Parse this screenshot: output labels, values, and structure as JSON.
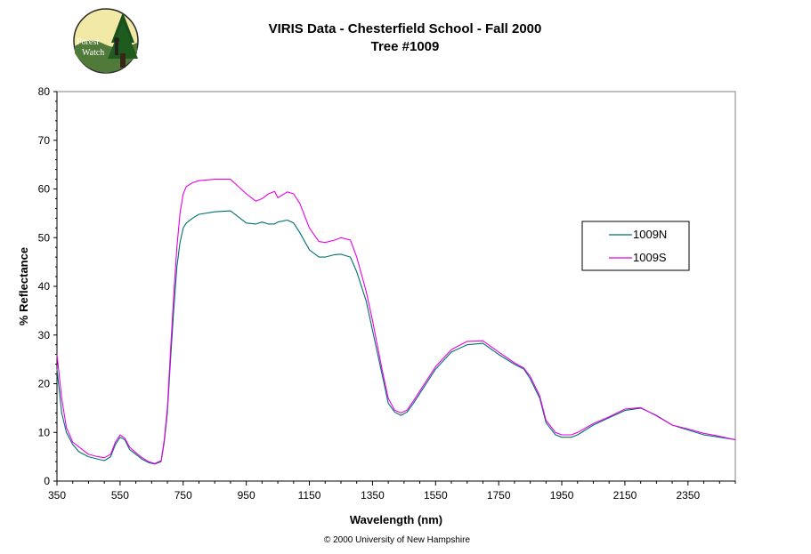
{
  "logo": {
    "line1": "Forest",
    "line2": "Watch"
  },
  "copyright": "© 2000 University of New Hampshire",
  "colors": {
    "series_1009N": "#007070",
    "series_1009S": "#e800e8"
  },
  "chart_data": {
    "type": "line",
    "title": "VIRIS Data - Chesterfield School - Fall 2000",
    "subtitle": "Tree #1009",
    "xlabel": "Wavelength (nm)",
    "ylabel": "% Reflectance",
    "xlim": [
      350,
      2500
    ],
    "ylim": [
      0,
      80
    ],
    "xticks": [
      350,
      550,
      750,
      950,
      1150,
      1350,
      1550,
      1750,
      1950,
      2150,
      2350
    ],
    "yticks": [
      0,
      10,
      20,
      30,
      40,
      50,
      60,
      70,
      80
    ],
    "grid": false,
    "legend_position": "right",
    "series": [
      {
        "name": "1009N",
        "color": "#007070",
        "x": [
          350,
          365,
          380,
          400,
          420,
          450,
          480,
          500,
          520,
          535,
          550,
          565,
          580,
          600,
          620,
          640,
          660,
          680,
          690,
          700,
          710,
          720,
          730,
          740,
          750,
          760,
          780,
          800,
          850,
          900,
          950,
          980,
          1000,
          1020,
          1040,
          1050,
          1080,
          1100,
          1120,
          1150,
          1180,
          1200,
          1230,
          1250,
          1280,
          1300,
          1330,
          1350,
          1380,
          1400,
          1420,
          1440,
          1460,
          1480,
          1500,
          1550,
          1600,
          1650,
          1700,
          1750,
          1800,
          1830,
          1850,
          1880,
          1900,
          1930,
          1950,
          1980,
          2000,
          2050,
          2100,
          2150,
          2200,
          2250,
          2300,
          2350,
          2400,
          2450,
          2500
        ],
        "y": [
          23,
          14,
          10,
          7.5,
          6,
          5,
          4.5,
          4.2,
          5,
          7.5,
          9,
          8.5,
          6.5,
          5.5,
          4.5,
          3.8,
          3.5,
          4,
          8,
          14,
          25,
          35,
          44,
          49,
          52,
          53,
          54,
          54.8,
          55.3,
          55.5,
          53,
          52.8,
          53.2,
          52.8,
          52.8,
          53.2,
          53.6,
          53,
          51,
          47.5,
          46,
          46,
          46.5,
          46.6,
          46,
          43,
          37,
          31,
          22,
          16,
          14.2,
          13.5,
          14.2,
          16,
          18,
          23,
          26.5,
          28,
          28.3,
          26,
          24,
          23,
          21,
          17,
          12,
          9.5,
          9,
          9,
          9.5,
          11.5,
          13,
          14.5,
          15,
          13.5,
          11.5,
          10.5,
          9.5,
          9,
          8.5
        ]
      },
      {
        "name": "1009S",
        "color": "#e800e8",
        "x": [
          350,
          365,
          380,
          400,
          420,
          450,
          480,
          500,
          520,
          535,
          550,
          565,
          580,
          600,
          620,
          640,
          660,
          680,
          690,
          700,
          710,
          720,
          730,
          740,
          750,
          760,
          780,
          800,
          850,
          900,
          950,
          980,
          1000,
          1020,
          1040,
          1050,
          1080,
          1100,
          1120,
          1150,
          1180,
          1200,
          1230,
          1250,
          1280,
          1300,
          1330,
          1350,
          1380,
          1400,
          1420,
          1440,
          1460,
          1480,
          1500,
          1550,
          1600,
          1650,
          1700,
          1750,
          1800,
          1830,
          1850,
          1880,
          1900,
          1930,
          1950,
          1980,
          2000,
          2050,
          2100,
          2150,
          2200,
          2250,
          2300,
          2350,
          2400,
          2450,
          2500
        ],
        "y": [
          26,
          17,
          11,
          8,
          7,
          5.5,
          5,
          4.8,
          5.5,
          8,
          9.5,
          8.8,
          7,
          5.8,
          4.8,
          4,
          3.6,
          4.2,
          8.5,
          15,
          27,
          38,
          48,
          55,
          59,
          60.5,
          61.3,
          61.7,
          62,
          62,
          59,
          57.5,
          58,
          59,
          59.5,
          58.2,
          59.4,
          59,
          57,
          52,
          49.2,
          49,
          49.5,
          50,
          49.5,
          46,
          39,
          33,
          23,
          17,
          14.6,
          14,
          14.6,
          16.5,
          18.5,
          23.5,
          27,
          28.7,
          28.8,
          26.5,
          24.3,
          23.2,
          21.5,
          17.5,
          12.5,
          10,
          9.5,
          9.5,
          10,
          11.8,
          13.2,
          14.8,
          15.1,
          13.4,
          11.5,
          10.7,
          9.8,
          9.2,
          8.5
        ]
      }
    ]
  }
}
